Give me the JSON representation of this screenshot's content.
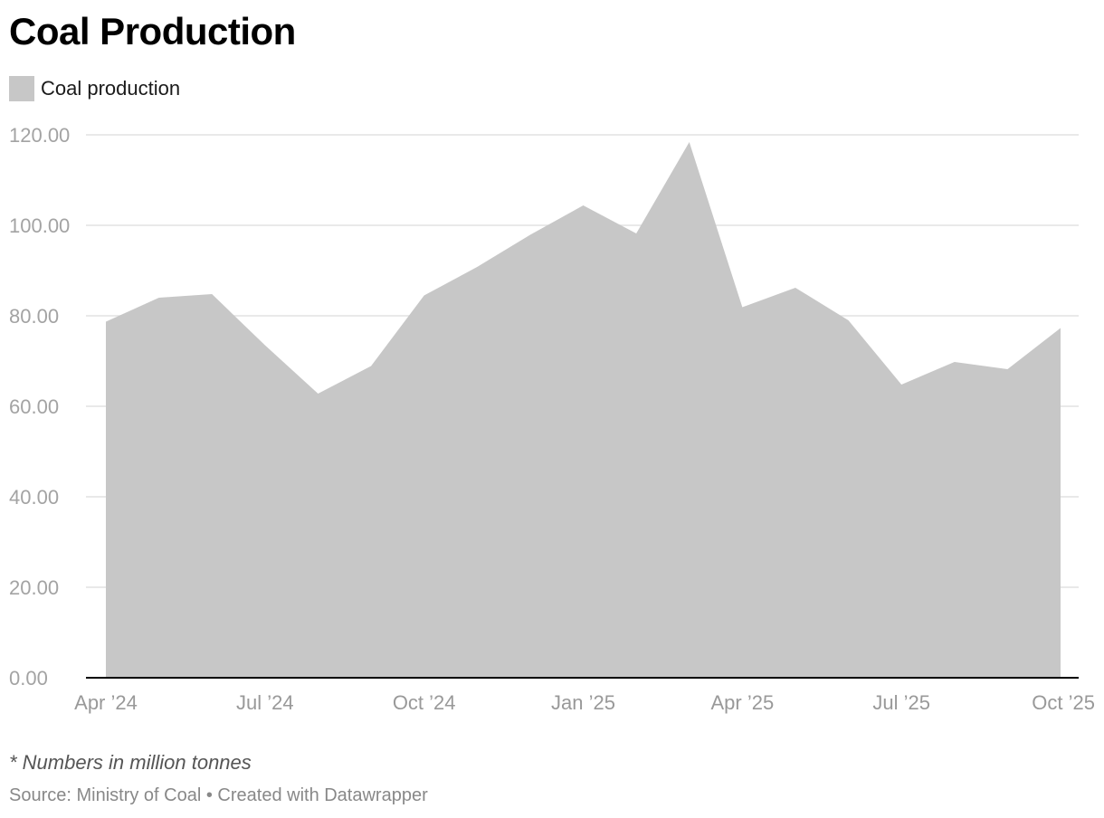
{
  "title": "Coal Production",
  "legend": {
    "label": "Coal production",
    "color": "#c7c7c7"
  },
  "chart_data": {
    "type": "area",
    "title": "Coal Production",
    "xlabel": "",
    "ylabel": "",
    "ylim": [
      0,
      120
    ],
    "yticks": [
      0,
      20,
      40,
      60,
      80,
      100,
      120
    ],
    "ytick_labels": [
      "0.00",
      "20.00",
      "40.00",
      "60.00",
      "80.00",
      "100.00",
      "120.00"
    ],
    "xtick_labels": [
      "Apr ’24",
      "Jul ’24",
      "Oct ’24",
      "Jan ’25",
      "Apr ’25",
      "Jul ’25",
      "Oct ’25"
    ],
    "grid": true,
    "legend_position": "top-left",
    "categories": [
      "Apr 2024",
      "May 2024",
      "Jun 2024",
      "Jul 2024",
      "Aug 2024",
      "Sep 2024",
      "Oct 2024",
      "Nov 2024",
      "Dec 2024",
      "Jan 2025",
      "Feb 2025",
      "Mar 2025",
      "Apr 2025",
      "May 2025",
      "Jun 2025",
      "Jul 2025",
      "Aug 2025",
      "Sep 2025",
      "Oct 2025"
    ],
    "series": [
      {
        "name": "Coal production",
        "color": "#c7c7c7",
        "values": [
          78.7,
          84.0,
          84.8,
          73.5,
          62.8,
          68.9,
          84.5,
          90.8,
          97.9,
          104.4,
          98.2,
          118.4,
          81.9,
          86.2,
          79.0,
          64.8,
          69.8,
          68.2,
          77.3
        ]
      }
    ]
  },
  "footer": {
    "note": "* Numbers in million tonnes",
    "source": "Source: Ministry of Coal • Created with Datawrapper"
  }
}
